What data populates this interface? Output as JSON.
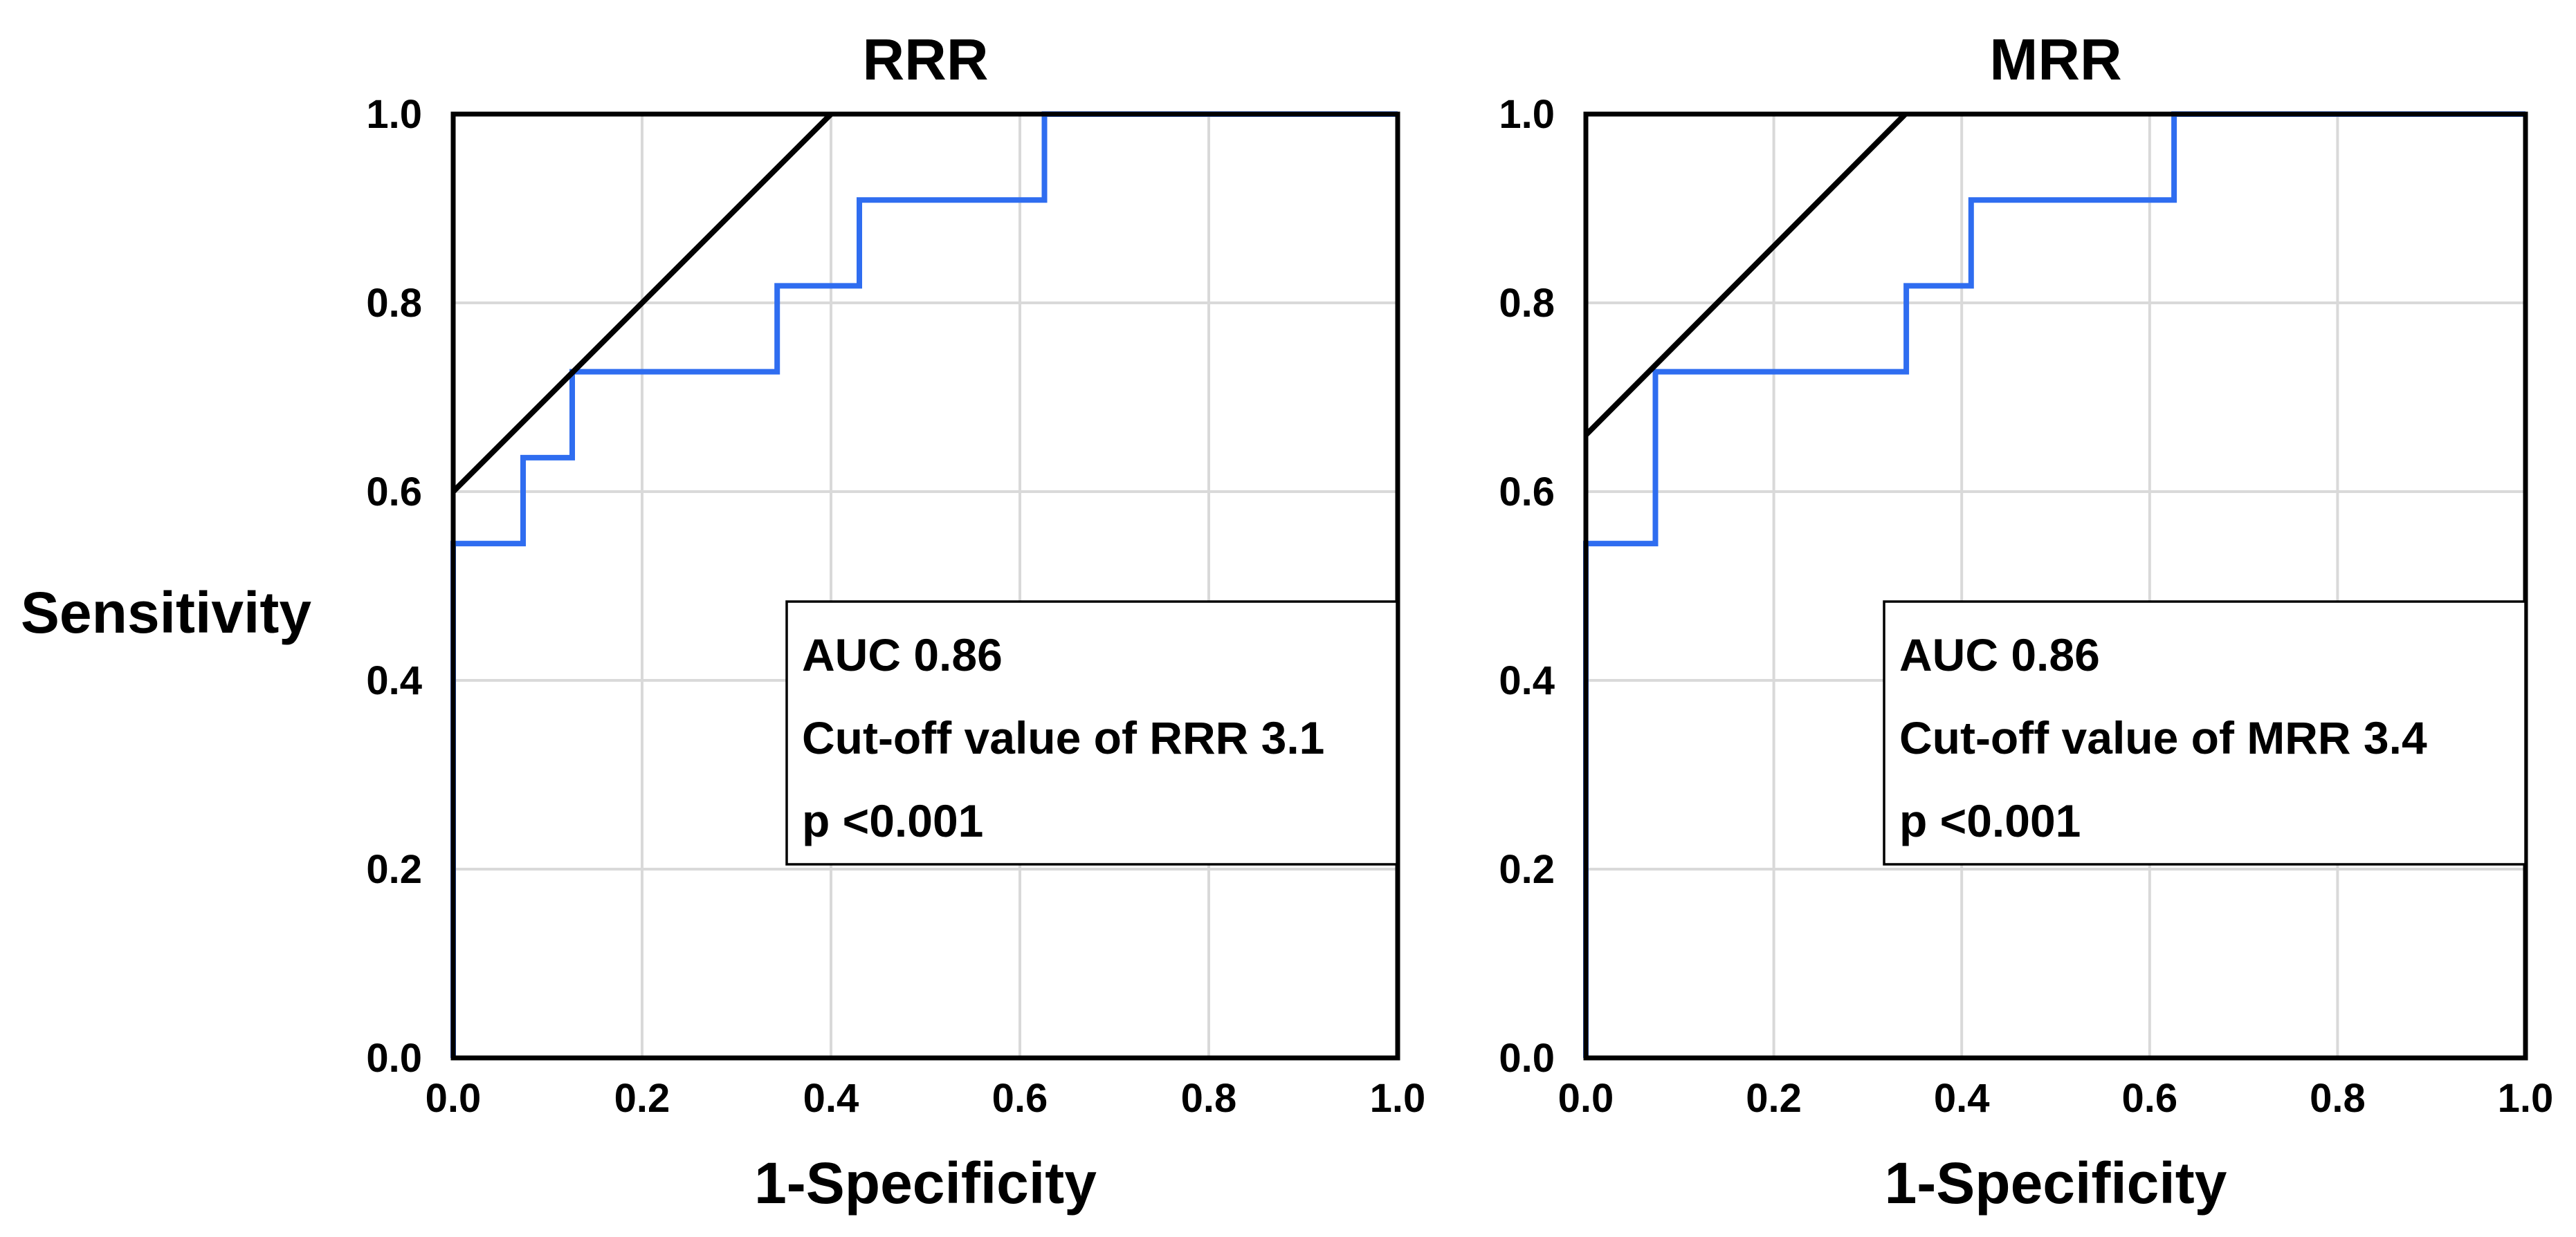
{
  "figure": {
    "shared_ylabel": "Sensitivity",
    "colors": {
      "roc_line": "#2f6df0",
      "reference_line": "#000000",
      "grid": "#d9d9d9"
    }
  },
  "chart_data": [
    {
      "id": "rrr",
      "type": "line",
      "title": "RRR",
      "xlabel": "1-Specificity",
      "ylabel": "Sensitivity",
      "xlim": [
        0,
        1
      ],
      "ylim": [
        0,
        1
      ],
      "grid": true,
      "xticks": [
        "0.0",
        "0.2",
        "0.4",
        "0.6",
        "0.8",
        "1.0"
      ],
      "yticks": [
        "0.0",
        "0.2",
        "0.4",
        "0.6",
        "0.8",
        "1.0"
      ],
      "series": [
        {
          "name": "ROC curve",
          "step": true,
          "x": [
            0.0,
            0.0,
            0.074,
            0.074,
            0.126,
            0.126,
            0.343,
            0.343,
            0.43,
            0.43,
            0.626,
            0.626,
            1.0
          ],
          "y": [
            0.0,
            0.545,
            0.545,
            0.636,
            0.636,
            0.727,
            0.727,
            0.818,
            0.818,
            0.909,
            0.909,
            1.0,
            1.0
          ]
        },
        {
          "name": "Reference line",
          "x": [
            0.0,
            0.4
          ],
          "y": [
            0.6,
            1.0
          ]
        }
      ],
      "annotation": [
        "AUC 0.86",
        "Cut-off value of RRR 3.1",
        "p <0.001"
      ]
    },
    {
      "id": "mrr",
      "type": "line",
      "title": "MRR",
      "xlabel": "1-Specificity",
      "ylabel": "Sensitivity",
      "xlim": [
        0,
        1
      ],
      "ylim": [
        0,
        1
      ],
      "grid": true,
      "xticks": [
        "0.0",
        "0.2",
        "0.4",
        "0.6",
        "0.8",
        "1.0"
      ],
      "yticks": [
        "0.0",
        "0.2",
        "0.4",
        "0.6",
        "0.8",
        "1.0"
      ],
      "series": [
        {
          "name": "ROC curve",
          "step": true,
          "x": [
            0.0,
            0.0,
            0.074,
            0.074,
            0.341,
            0.341,
            0.41,
            0.41,
            0.626,
            0.626,
            1.0
          ],
          "y": [
            0.0,
            0.545,
            0.545,
            0.727,
            0.727,
            0.818,
            0.818,
            0.909,
            0.909,
            1.0,
            1.0
          ]
        },
        {
          "name": "Reference line",
          "x": [
            0.0,
            0.34
          ],
          "y": [
            0.66,
            1.0
          ]
        }
      ],
      "annotation": [
        "AUC 0.86",
        "Cut-off value of MRR 3.4",
        "p <0.001"
      ]
    }
  ]
}
